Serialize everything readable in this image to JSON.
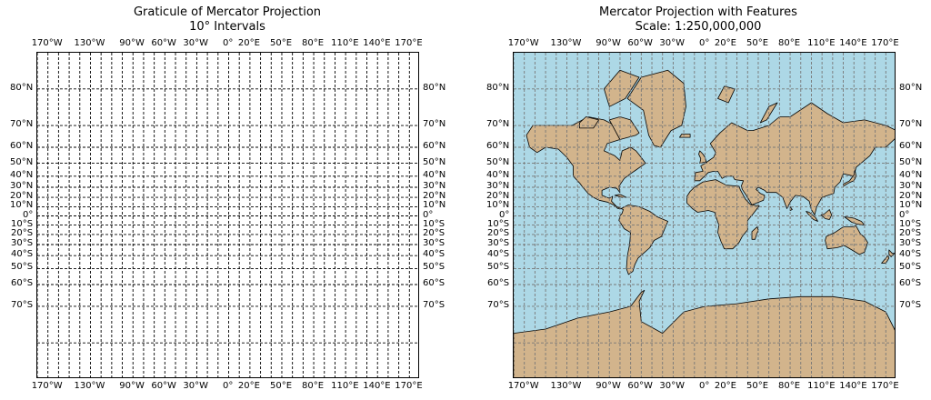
{
  "maps": [
    {
      "title_line1": "Graticule of Mercator Projection",
      "title_line2": "10° Intervals",
      "background": "#ffffff",
      "show_land": false,
      "grid_color": "#000000",
      "grid_style": "dashed"
    },
    {
      "title_line1": "Mercator Projection with Features",
      "title_line2": "Scale: 1:250,000,000",
      "background": "#add8e6",
      "show_land": true,
      "land_color": "#d2b48c",
      "grid_color": "#777777",
      "grid_style": "dashed"
    }
  ],
  "lon_labels": [
    "170°W",
    "130°W",
    "90°W",
    "60°W",
    "30°W",
    "0°",
    "20°E",
    "50°E",
    "80°E",
    "110°E",
    "140°E",
    "170°E"
  ],
  "lat_labels": [
    "80°N",
    "70°N",
    "60°N",
    "50°N",
    "40°N",
    "30°N",
    "20°N",
    "10°N",
    "0°",
    "10°S",
    "20°S",
    "30°S",
    "40°S",
    "50°S",
    "60°S",
    "70°S"
  ],
  "chart_data": {
    "type": "map",
    "projection": "Mercator",
    "graticule_interval_deg": 10,
    "lon_range": [
      -180,
      180
    ],
    "lat_range": [
      -85,
      85
    ]
  }
}
